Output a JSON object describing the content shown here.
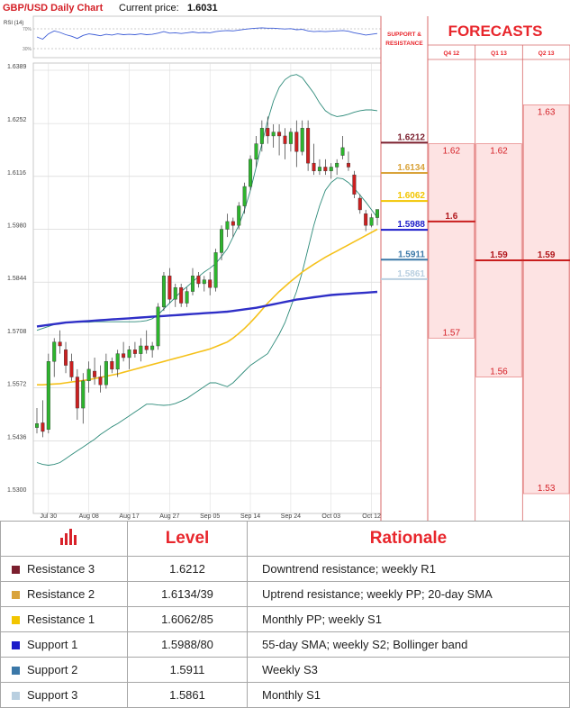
{
  "header": {
    "title": "GBP/USD Daily Chart",
    "price_label": "Current price:",
    "price_value": "1.6031"
  },
  "rsi": {
    "label": "RSI (14)",
    "levels": [
      "70%",
      "30%"
    ]
  },
  "colors": {
    "r3": "#7b1f2e",
    "r2": "#d9a33b",
    "r1": "#f2c500",
    "s1": "#1c1cc9",
    "s2": "#3b78a8",
    "s3": "#b9cfe0",
    "accent": "#e8262c",
    "sma55": "#2f2fc7",
    "sma20": "#f5c11a",
    "bollinger": "#2e8b7a",
    "up": "#2db52d",
    "down": "#cc1f1f"
  },
  "chart_data": [
    {
      "type": "candlestick",
      "title": "GBP/USD Daily Chart",
      "ylim": [
        1.53,
        1.6389
      ],
      "y_ticks": [
        "1.6389",
        "1.6252",
        "1.6116",
        "1.5980",
        "1.5844",
        "1.5708",
        "1.5572",
        "1.5436",
        "1.5300"
      ],
      "x_ticks": [
        "Jul 30",
        "Aug 08",
        "Aug 17",
        "Aug 27",
        "Sep 05",
        "Sep 14",
        "Sep 24",
        "Oct 03",
        "Oct 12"
      ],
      "x_tick_index": [
        2,
        9,
        16,
        23,
        30,
        37,
        44,
        51,
        58
      ],
      "ohlc": [
        [
          1.547,
          1.552,
          1.5455,
          1.548
        ],
        [
          1.5482,
          1.554,
          1.5445,
          1.546
        ],
        [
          1.5465,
          1.566,
          1.5455,
          1.564
        ],
        [
          1.564,
          1.57,
          1.56,
          1.569
        ],
        [
          1.569,
          1.572,
          1.566,
          1.568
        ],
        [
          1.567,
          1.569,
          1.561,
          1.563
        ],
        [
          1.564,
          1.566,
          1.559,
          1.56
        ],
        [
          1.56,
          1.562,
          1.549,
          1.552
        ],
        [
          1.552,
          1.561,
          1.548,
          1.559
        ],
        [
          1.559,
          1.564,
          1.556,
          1.562
        ],
        [
          1.5615,
          1.565,
          1.558,
          1.56
        ],
        [
          1.56,
          1.563,
          1.556,
          1.558
        ],
        [
          1.558,
          1.566,
          1.557,
          1.564
        ],
        [
          1.564,
          1.565,
          1.561,
          1.562
        ],
        [
          1.562,
          1.567,
          1.56,
          1.566
        ],
        [
          1.566,
          1.569,
          1.564,
          1.565
        ],
        [
          1.565,
          1.568,
          1.562,
          1.567
        ],
        [
          1.567,
          1.569,
          1.565,
          1.566
        ],
        [
          1.566,
          1.57,
          1.564,
          1.568
        ],
        [
          1.568,
          1.572,
          1.566,
          1.567
        ],
        [
          1.567,
          1.569,
          1.565,
          1.568
        ],
        [
          1.568,
          1.579,
          1.567,
          1.578
        ],
        [
          1.578,
          1.587,
          1.577,
          1.586
        ],
        [
          1.586,
          1.588,
          1.579,
          1.58
        ],
        [
          1.58,
          1.584,
          1.578,
          1.583
        ],
        [
          1.583,
          1.584,
          1.578,
          1.579
        ],
        [
          1.579,
          1.583,
          1.578,
          1.582
        ],
        [
          1.582,
          1.588,
          1.581,
          1.586
        ],
        [
          1.586,
          1.587,
          1.583,
          1.584
        ],
        [
          1.584,
          1.586,
          1.582,
          1.585
        ],
        [
          1.585,
          1.587,
          1.581,
          1.583
        ],
        [
          1.583,
          1.593,
          1.582,
          1.592
        ],
        [
          1.592,
          1.599,
          1.59,
          1.598
        ],
        [
          1.598,
          1.602,
          1.596,
          1.6
        ],
        [
          1.6,
          1.601,
          1.596,
          1.599
        ],
        [
          1.599,
          1.605,
          1.598,
          1.604
        ],
        [
          1.604,
          1.61,
          1.602,
          1.609
        ],
        [
          1.609,
          1.617,
          1.608,
          1.616
        ],
        [
          1.616,
          1.622,
          1.614,
          1.62
        ],
        [
          1.62,
          1.626,
          1.618,
          1.624
        ],
        [
          1.624,
          1.627,
          1.62,
          1.622
        ],
        [
          1.622,
          1.625,
          1.619,
          1.623
        ],
        [
          1.623,
          1.625,
          1.617,
          1.622
        ],
        [
          1.622,
          1.624,
          1.616,
          1.62
        ],
        [
          1.62,
          1.624,
          1.618,
          1.623
        ],
        [
          1.623,
          1.626,
          1.614,
          1.618
        ],
        [
          1.618,
          1.626,
          1.617,
          1.624
        ],
        [
          1.624,
          1.626,
          1.613,
          1.615
        ],
        [
          1.615,
          1.62,
          1.612,
          1.613
        ],
        [
          1.613,
          1.616,
          1.612,
          1.614
        ],
        [
          1.614,
          1.616,
          1.612,
          1.613
        ],
        [
          1.613,
          1.615,
          1.611,
          1.614
        ],
        [
          1.614,
          1.616,
          1.612,
          1.615
        ],
        [
          1.617,
          1.622,
          1.616,
          1.619
        ],
        [
          1.615,
          1.618,
          1.613,
          1.614
        ],
        [
          1.612,
          1.613,
          1.606,
          1.607
        ],
        [
          1.606,
          1.607,
          1.602,
          1.603
        ],
        [
          1.602,
          1.603,
          1.5975,
          1.599
        ],
        [
          1.599,
          1.602,
          1.5985,
          1.601
        ],
        [
          1.601,
          1.603,
          1.599,
          1.6031
        ]
      ],
      "sma55": [
        1.573,
        1.5732,
        1.5734,
        1.5736,
        1.5738,
        1.574,
        1.5741,
        1.5742,
        1.5743,
        1.5744,
        1.5745,
        1.5746,
        1.5747,
        1.5748,
        1.5749,
        1.575,
        1.5751,
        1.5752,
        1.5753,
        1.5754,
        1.5755,
        1.5756,
        1.5757,
        1.5758,
        1.5759,
        1.576,
        1.5761,
        1.5762,
        1.5763,
        1.5764,
        1.5765,
        1.5766,
        1.5767,
        1.5768,
        1.577,
        1.5772,
        1.5774,
        1.5776,
        1.5778,
        1.5781,
        1.5784,
        1.5787,
        1.579,
        1.5793,
        1.5796,
        1.5799,
        1.5801,
        1.5803,
        1.5805,
        1.5807,
        1.5809,
        1.5811,
        1.5812,
        1.5813,
        1.5814,
        1.5815,
        1.5816,
        1.5817,
        1.5818,
        1.5819
      ],
      "sma20": [
        1.558,
        1.558,
        1.5581,
        1.5582,
        1.5583,
        1.5585,
        1.5587,
        1.5589,
        1.5591,
        1.5593,
        1.5596,
        1.5599,
        1.5602,
        1.5605,
        1.5608,
        1.5612,
        1.5616,
        1.562,
        1.5624,
        1.5628,
        1.5632,
        1.5636,
        1.564,
        1.5644,
        1.5648,
        1.5652,
        1.5656,
        1.566,
        1.5664,
        1.5668,
        1.5672,
        1.5678,
        1.5684,
        1.569,
        1.57,
        1.5712,
        1.5725,
        1.574,
        1.5756,
        1.5773,
        1.579,
        1.5805,
        1.582,
        1.5833,
        1.5846,
        1.5858,
        1.587,
        1.588,
        1.589,
        1.5899,
        1.5908,
        1.5916,
        1.5924,
        1.5932,
        1.594,
        1.5948,
        1.5956,
        1.5964,
        1.5972,
        1.598
      ],
      "bollinger_upper": [
        1.572,
        1.5725,
        1.573,
        1.5735,
        1.5738,
        1.574,
        1.574,
        1.5741,
        1.5741,
        1.5741,
        1.5742,
        1.5742,
        1.5742,
        1.5742,
        1.5742,
        1.5742,
        1.5742,
        1.5742,
        1.5743,
        1.5745,
        1.575,
        1.576,
        1.5775,
        1.579,
        1.5805,
        1.582,
        1.5832,
        1.5845,
        1.5858,
        1.587,
        1.588,
        1.5892,
        1.591,
        1.593,
        1.596,
        1.599,
        1.603,
        1.608,
        1.614,
        1.62,
        1.626,
        1.631,
        1.6345,
        1.6365,
        1.6375,
        1.6378,
        1.637,
        1.635,
        1.633,
        1.6305,
        1.6285,
        1.6275,
        1.627,
        1.6272,
        1.6276,
        1.6281,
        1.6285,
        1.6287,
        1.6287,
        1.6285
      ],
      "bollinger_lower": [
        1.538,
        1.5375,
        1.5373,
        1.5375,
        1.538,
        1.539,
        1.54,
        1.541,
        1.542,
        1.543,
        1.544,
        1.5452,
        1.5462,
        1.5472,
        1.548,
        1.549,
        1.55,
        1.551,
        1.552,
        1.553,
        1.553,
        1.5528,
        1.5527,
        1.5528,
        1.5532,
        1.5538,
        1.5545,
        1.5555,
        1.5565,
        1.5575,
        1.5585,
        1.5585,
        1.558,
        1.5575,
        1.5585,
        1.56,
        1.5615,
        1.563,
        1.564,
        1.565,
        1.566,
        1.5685,
        1.571,
        1.574,
        1.578,
        1.582,
        1.587,
        1.593,
        1.599,
        1.604,
        1.608,
        1.61,
        1.6112,
        1.611,
        1.61,
        1.6085,
        1.6068,
        1.605,
        1.603,
        1.601
      ],
      "rsi": [
        50,
        44,
        58,
        66,
        62,
        56,
        52,
        46,
        54,
        58,
        56,
        53,
        57,
        55,
        58,
        56,
        57,
        56,
        58,
        56,
        57,
        60,
        64,
        60,
        61,
        59,
        61,
        63,
        61,
        62,
        61,
        64,
        66,
        67,
        66,
        68,
        70,
        72,
        73,
        74,
        73,
        73,
        72,
        71,
        72,
        69,
        70,
        66,
        64,
        65,
        64,
        65,
        66,
        67,
        65,
        61,
        58,
        55,
        57,
        59
      ],
      "rsi_ylim": [
        0,
        100
      ],
      "levels": [
        {
          "value": "1.6212",
          "y": 1.6212,
          "name": "r3"
        },
        {
          "value": "1.6134",
          "y": 1.6134,
          "name": "r2"
        },
        {
          "value": "1.6062",
          "y": 1.6062,
          "name": "r1"
        },
        {
          "value": "1.5988",
          "y": 1.5988,
          "name": "s1"
        },
        {
          "value": "1.5911",
          "y": 1.5911,
          "name": "s2"
        },
        {
          "value": "1.5861",
          "y": 1.5861,
          "name": "s3"
        }
      ]
    },
    {
      "type": "bar",
      "title": "FORECASTS",
      "categories": [
        "Q4 12",
        "Q1 13",
        "Q2 13"
      ],
      "ylim": [
        1.53,
        1.6389
      ],
      "forecasts": [
        {
          "high": 1.62,
          "mid": 1.6,
          "low": 1.57,
          "labels": [
            "1.62",
            "1.6",
            "1.57"
          ]
        },
        {
          "high": 1.62,
          "mid": 1.59,
          "low": 1.56,
          "labels": [
            "1.62",
            "1.59",
            "1.56"
          ]
        },
        {
          "high": 1.63,
          "mid": 1.59,
          "low": 1.53,
          "labels": [
            "1.63",
            "1.59",
            "1.53"
          ]
        }
      ]
    }
  ],
  "support_resistance_header": [
    "SUPPORT &",
    "RESISTANCE"
  ],
  "forecast_title": "FORECASTS",
  "table": {
    "headers": [
      "Level",
      "Rationale"
    ],
    "rows": [
      {
        "name": "Resistance 3",
        "level": "1.6212",
        "rationale": "Downtrend resistance; weekly R1",
        "color": "#7b1f2e"
      },
      {
        "name": "Resistance 2",
        "level": "1.6134/39",
        "rationale": "Uptrend resistance; weekly PP; 20-day SMA",
        "color": "#d9a33b"
      },
      {
        "name": "Resistance 1",
        "level": "1.6062/85",
        "rationale": "Monthly PP; weekly S1",
        "color": "#f2c500"
      },
      {
        "name": "Support 1",
        "level": "1.5988/80",
        "rationale": "55-day SMA; weekly S2; Bollinger band",
        "color": "#1c1cc9"
      },
      {
        "name": "Support 2",
        "level": "1.5911",
        "rationale": "Weekly S3",
        "color": "#3b78a8"
      },
      {
        "name": "Support 3",
        "level": "1.5861",
        "rationale": "Monthly S1",
        "color": "#b9cfe0"
      }
    ]
  }
}
